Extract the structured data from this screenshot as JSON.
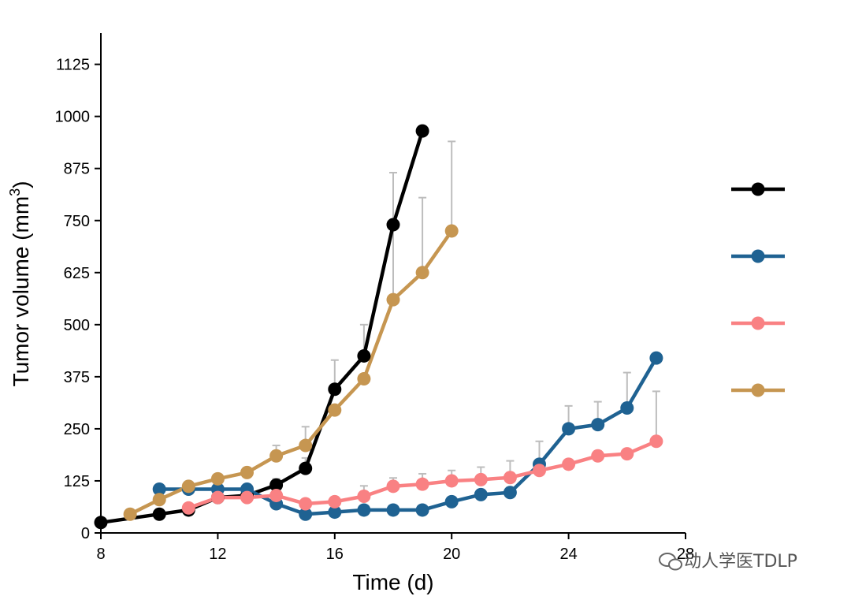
{
  "chart_data": {
    "type": "line",
    "title": "",
    "xlabel": "Time (d)",
    "ylabel": "Tumor volume (mm",
    "ylabel_superscript": "3",
    "ylabel_suffix": ")",
    "xlim": [
      8,
      28
    ],
    "ylim": [
      0,
      1200
    ],
    "xticks": [
      8,
      12,
      16,
      20,
      24,
      28
    ],
    "xtick_labels": [
      "8",
      "12",
      "16",
      "20",
      "24",
      "28"
    ],
    "yticks": [
      0,
      125,
      250,
      375,
      500,
      625,
      750,
      875,
      1000,
      1125
    ],
    "ytick_labels": [
      "0",
      "125",
      "250",
      "375",
      "500",
      "625",
      "750",
      "875",
      "1000",
      "1125"
    ],
    "legend_position": "right",
    "series": [
      {
        "name": "",
        "color": "#000000",
        "x": [
          8,
          10,
          11,
          12,
          13,
          14,
          15,
          16,
          17,
          18,
          19
        ],
        "y": [
          25,
          45,
          55,
          85,
          90,
          115,
          155,
          345,
          425,
          740,
          965
        ],
        "err": [
          0,
          0,
          0,
          0,
          0,
          15,
          25,
          70,
          75,
          125,
          0
        ]
      },
      {
        "name": "",
        "color": "#1F6292",
        "x": [
          10,
          11,
          12,
          13,
          14,
          15,
          16,
          17,
          18,
          19,
          20,
          21,
          22,
          23,
          24,
          25,
          26,
          27
        ],
        "y": [
          105,
          105,
          105,
          105,
          70,
          45,
          50,
          55,
          55,
          55,
          75,
          92,
          97,
          165,
          250,
          260,
          300,
          420
        ],
        "err": [
          0,
          0,
          0,
          0,
          0,
          0,
          0,
          0,
          0,
          0,
          0,
          0,
          0,
          55,
          55,
          55,
          85,
          0
        ]
      },
      {
        "name": "",
        "color": "#F98183",
        "x": [
          11,
          12,
          13,
          14,
          15,
          16,
          17,
          18,
          19,
          20,
          21,
          22,
          23,
          24,
          25,
          26,
          27
        ],
        "y": [
          60,
          85,
          85,
          90,
          70,
          75,
          88,
          112,
          117,
          125,
          128,
          133,
          150,
          165,
          185,
          190,
          220
        ],
        "err": [
          0,
          0,
          0,
          0,
          0,
          0,
          25,
          20,
          25,
          25,
          30,
          40,
          0,
          0,
          0,
          0,
          120
        ]
      },
      {
        "name": "",
        "color": "#C69651",
        "x": [
          9,
          10,
          11,
          12,
          13,
          14,
          15,
          16,
          17,
          18,
          19,
          20
        ],
        "y": [
          45,
          80,
          112,
          130,
          145,
          185,
          210,
          295,
          370,
          560,
          625,
          725
        ],
        "err": [
          0,
          0,
          0,
          0,
          0,
          25,
          45,
          0,
          0,
          305,
          180,
          215
        ]
      }
    ]
  },
  "watermark": {
    "text": "动人学医TDLP",
    "icon": "wechat-icon"
  }
}
